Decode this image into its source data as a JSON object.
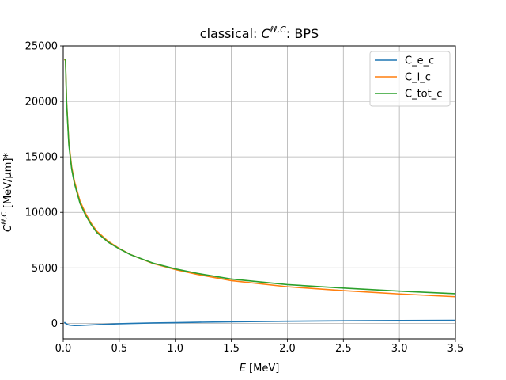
{
  "chart_data": {
    "type": "line",
    "title_prefix": "classical: ",
    "title_symbol": "C",
    "title_sup": "ℓℓ,C",
    "title_suffix": ": BPS",
    "xlabel_symbol": "E",
    "xlabel_unit": " [MeV]",
    "ylabel_symbol": "C",
    "ylabel_sup": "ℓℓ,C",
    "ylabel_unit": " [MeV/μm]*",
    "xlim": [
      0,
      3.5
    ],
    "ylim": [
      -1400,
      25000
    ],
    "x_ticks": [
      0,
      0.5,
      1,
      1.5,
      2,
      2.5,
      3,
      3.5
    ],
    "x_tick_labels": [
      "0.0",
      "0.5",
      "1.0",
      "1.5",
      "2.0",
      "2.5",
      "3.0",
      "3.5"
    ],
    "y_ticks": [
      0,
      5000,
      10000,
      15000,
      20000,
      25000
    ],
    "y_tick_labels": [
      "0",
      "5000",
      "10000",
      "15000",
      "20000",
      "25000"
    ],
    "grid": true,
    "legend_position": "top-right",
    "series": [
      {
        "name": "C_e_c",
        "color": "#1f77b4",
        "points": [
          [
            0.01,
            100
          ],
          [
            0.02,
            0
          ],
          [
            0.04,
            -120
          ],
          [
            0.06,
            -170
          ],
          [
            0.1,
            -200
          ],
          [
            0.15,
            -190
          ],
          [
            0.2,
            -170
          ],
          [
            0.3,
            -120
          ],
          [
            0.4,
            -80
          ],
          [
            0.5,
            -40
          ],
          [
            0.6,
            -10
          ],
          [
            0.8,
            30
          ],
          [
            1.0,
            60
          ],
          [
            1.2,
            95
          ],
          [
            1.5,
            140
          ],
          [
            2.0,
            190
          ],
          [
            2.5,
            230
          ],
          [
            3.0,
            255
          ],
          [
            3.5,
            275
          ]
        ]
      },
      {
        "name": "C_i_c",
        "color": "#ff7f0e",
        "points": [
          [
            0.01,
            23700
          ],
          [
            0.02,
            23800
          ],
          [
            0.03,
            20000
          ],
          [
            0.05,
            16300
          ],
          [
            0.075,
            14100
          ],
          [
            0.1,
            12800
          ],
          [
            0.15,
            11000
          ],
          [
            0.2,
            9900
          ],
          [
            0.25,
            9000
          ],
          [
            0.3,
            8300
          ],
          [
            0.4,
            7400
          ],
          [
            0.5,
            6750
          ],
          [
            0.6,
            6200
          ],
          [
            0.7,
            5800
          ],
          [
            0.8,
            5400
          ],
          [
            1.0,
            4850
          ],
          [
            1.2,
            4400
          ],
          [
            1.5,
            3850
          ],
          [
            2.0,
            3300
          ],
          [
            2.5,
            2950
          ],
          [
            3.0,
            2650
          ],
          [
            3.5,
            2400
          ]
        ]
      },
      {
        "name": "C_tot_c",
        "color": "#2ca02c",
        "points": [
          [
            0.01,
            23800
          ],
          [
            0.02,
            23800
          ],
          [
            0.03,
            19900
          ],
          [
            0.05,
            16100
          ],
          [
            0.075,
            13900
          ],
          [
            0.1,
            12600
          ],
          [
            0.15,
            10800
          ],
          [
            0.2,
            9730
          ],
          [
            0.25,
            8880
          ],
          [
            0.3,
            8180
          ],
          [
            0.4,
            7320
          ],
          [
            0.5,
            6710
          ],
          [
            0.6,
            6190
          ],
          [
            0.7,
            5810
          ],
          [
            0.8,
            5430
          ],
          [
            1.0,
            4910
          ],
          [
            1.2,
            4495
          ],
          [
            1.5,
            3990
          ],
          [
            2.0,
            3490
          ],
          [
            2.5,
            3180
          ],
          [
            3.0,
            2905
          ],
          [
            3.5,
            2675
          ]
        ]
      }
    ]
  }
}
